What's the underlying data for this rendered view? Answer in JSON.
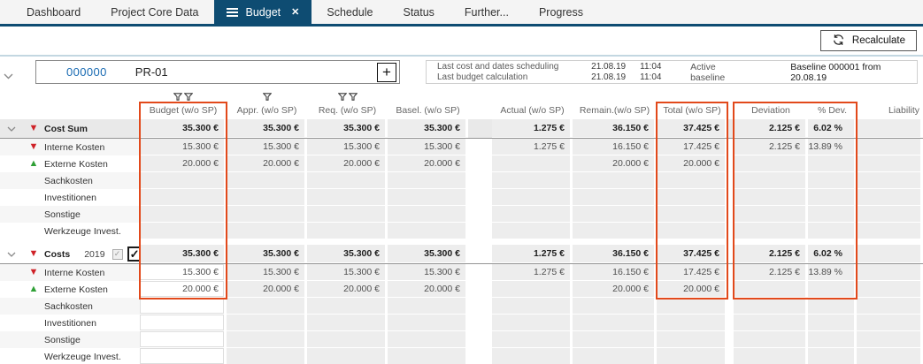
{
  "colors": {
    "navy": "#0e4c72",
    "highlight_orange": "#e2491b",
    "trend_red": "#cf2127",
    "trend_green": "#2fa036",
    "link_blue": "#186ab2"
  },
  "tabs": [
    {
      "label": "Dashboard"
    },
    {
      "label": "Project Core Data"
    },
    {
      "label": "Budget",
      "active": true
    },
    {
      "label": "Schedule"
    },
    {
      "label": "Status"
    },
    {
      "label": "Further..."
    },
    {
      "label": "Progress"
    }
  ],
  "toolbar": {
    "recalculate_label": "Recalculate"
  },
  "project": {
    "number": "000000",
    "code": "PR-01",
    "add_button": "+"
  },
  "status": {
    "rows": [
      {
        "label": "Last cost and dates scheduling",
        "date": "21.08.19",
        "time": "11:04"
      },
      {
        "label": "Last budget calculation",
        "date": "21.08.19",
        "time": "11:04"
      }
    ],
    "active_baseline_label": "Active baseline",
    "baseline": "Baseline 000001 from 20.08.19"
  },
  "table": {
    "columns": [
      {
        "key": "budget",
        "label": "Budget (w/o SP)",
        "filter": "double",
        "highlight": true
      },
      {
        "key": "appr",
        "label": "Appr. (w/o SP)",
        "filter": "single"
      },
      {
        "key": "req",
        "label": "Req. (w/o SP)",
        "filter": "double"
      },
      {
        "key": "basel",
        "label": "Basel. (w/o SP)"
      },
      {
        "key": "actual",
        "label": "Actual (w/o SP)"
      },
      {
        "key": "remain",
        "label": "Remain.(w/o SP)"
      },
      {
        "key": "total",
        "label": "Total (w/o SP)",
        "highlight": true
      },
      {
        "key": "deviation",
        "label": "Deviation",
        "highlight": true
      },
      {
        "key": "pdev",
        "label": "% Dev.",
        "highlight": true
      },
      {
        "key": "liability",
        "label": "Liability"
      }
    ],
    "groups": [
      {
        "summary": {
          "label": "Cost Sum",
          "trend": "down",
          "values": [
            "35.300 €",
            "35.300 €",
            "35.300 €",
            "35.300 €",
            "1.275 €",
            "36.150 €",
            "37.425 €",
            "2.125 €",
            "6.02 %",
            ""
          ]
        },
        "rows": [
          {
            "label": "Interne Kosten",
            "trend": "down",
            "values": [
              "15.300 €",
              "15.300 €",
              "15.300 €",
              "15.300 €",
              "1.275 €",
              "16.150 €",
              "17.425 €",
              "2.125 €",
              "13.89 %",
              ""
            ]
          },
          {
            "label": "Externe Kosten",
            "trend": "up",
            "values": [
              "20.000 €",
              "20.000 €",
              "20.000 €",
              "20.000 €",
              "",
              "20.000 €",
              "20.000 €",
              "",
              "",
              ""
            ]
          },
          {
            "label": "Sachkosten",
            "values": [
              "",
              "",
              "",
              "",
              "",
              "",
              "",
              "",
              "",
              ""
            ]
          },
          {
            "label": "Investitionen",
            "values": [
              "",
              "",
              "",
              "",
              "",
              "",
              "",
              "",
              "",
              ""
            ]
          },
          {
            "label": "Sonstige",
            "values": [
              "",
              "",
              "",
              "",
              "",
              "",
              "",
              "",
              "",
              ""
            ]
          },
          {
            "label": "Werkzeuge Invest.",
            "values": [
              "",
              "",
              "",
              "",
              "",
              "",
              "",
              "",
              "",
              ""
            ]
          }
        ]
      },
      {
        "summary": {
          "label": "Costs",
          "year": "2019",
          "trend": "down",
          "checkbox_locked_checked": true,
          "checkbox_checked": true,
          "check_glyph": "✓",
          "values": [
            "35.300 €",
            "35.300 €",
            "35.300 €",
            "35.300 €",
            "1.275 €",
            "36.150 €",
            "37.425 €",
            "2.125 €",
            "6.02 %",
            ""
          ]
        },
        "rows": [
          {
            "label": "Interne Kosten",
            "trend": "down",
            "values": [
              "15.300 €",
              "15.300 €",
              "15.300 €",
              "15.300 €",
              "1.275 €",
              "16.150 €",
              "17.425 €",
              "2.125 €",
              "13.89 %",
              ""
            ]
          },
          {
            "label": "Externe Kosten",
            "trend": "up",
            "values": [
              "20.000 €",
              "20.000 €",
              "20.000 €",
              "20.000 €",
              "",
              "20.000 €",
              "20.000 €",
              "",
              "",
              ""
            ]
          },
          {
            "label": "Sachkosten",
            "values": [
              "",
              "",
              "",
              "",
              "",
              "",
              "",
              "",
              "",
              ""
            ]
          },
          {
            "label": "Investitionen",
            "values": [
              "",
              "",
              "",
              "",
              "",
              "",
              "",
              "",
              "",
              ""
            ]
          },
          {
            "label": "Sonstige",
            "values": [
              "",
              "",
              "",
              "",
              "",
              "",
              "",
              "",
              "",
              ""
            ]
          },
          {
            "label": "Werkzeuge Invest.",
            "values": [
              "",
              "",
              "",
              "",
              "",
              "",
              "",
              "",
              "",
              ""
            ]
          }
        ]
      }
    ]
  }
}
